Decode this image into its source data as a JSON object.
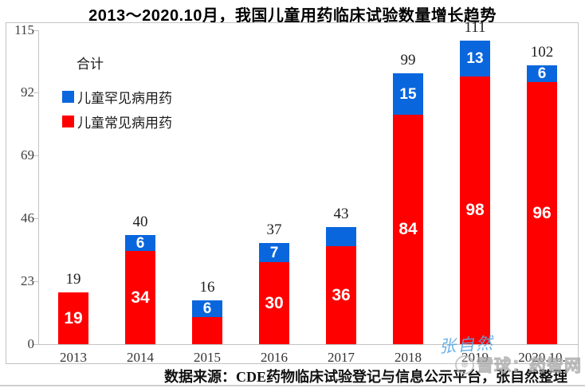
{
  "title": "2013～2020.10月，我国儿童用药临床试验数量增长趋势",
  "legend": {
    "total_label": "合计",
    "rare_label": "儿童罕见病用药",
    "common_label": "儿童常见病用药"
  },
  "colors": {
    "rare_blue": "#0a66dd",
    "common_red": "#fe0000",
    "axis_grey": "#c3c3c3",
    "handwriting_blue": "#5ca9e2",
    "watermark_grey": "#bdbdbd"
  },
  "chart_data": {
    "type": "bar",
    "stacked": true,
    "title": "2013～2020.10月，我国儿童用药临床试验数量增长趋势",
    "categories": [
      "2013",
      "2014",
      "2015",
      "2016",
      "2017",
      "2018",
      "2019",
      "2020.10."
    ],
    "series": [
      {
        "name": "儿童常见病用药",
        "color_key": "common_red",
        "values": [
          19,
          34,
          10,
          30,
          36,
          84,
          98,
          96
        ],
        "labels": [
          "19",
          "34",
          "",
          "30",
          "36",
          "84",
          "98",
          "96"
        ]
      },
      {
        "name": "儿童罕见病用药",
        "color_key": "rare_blue",
        "values": [
          0,
          6,
          6,
          7,
          7,
          15,
          13,
          6
        ],
        "labels": [
          "",
          "6",
          "6",
          "7",
          "",
          "15",
          "13",
          "6"
        ]
      }
    ],
    "totals": [
      19,
      40,
      16,
      37,
      43,
      99,
      111,
      102
    ],
    "y_ticks": [
      0,
      23,
      46,
      69,
      92,
      115
    ],
    "ylim": [
      0,
      115
    ],
    "xlabel": "",
    "ylabel": "",
    "grid": false,
    "legend_position": "upper-left"
  },
  "source_note": "数据来源：CDE药物临床试验登记与信息公示平台，张自然整理",
  "watermarks": {
    "handwriting": "张自然",
    "xueqiu_text": "雪球：药智网",
    "xueqiu_logo": "snowflake-icon"
  }
}
